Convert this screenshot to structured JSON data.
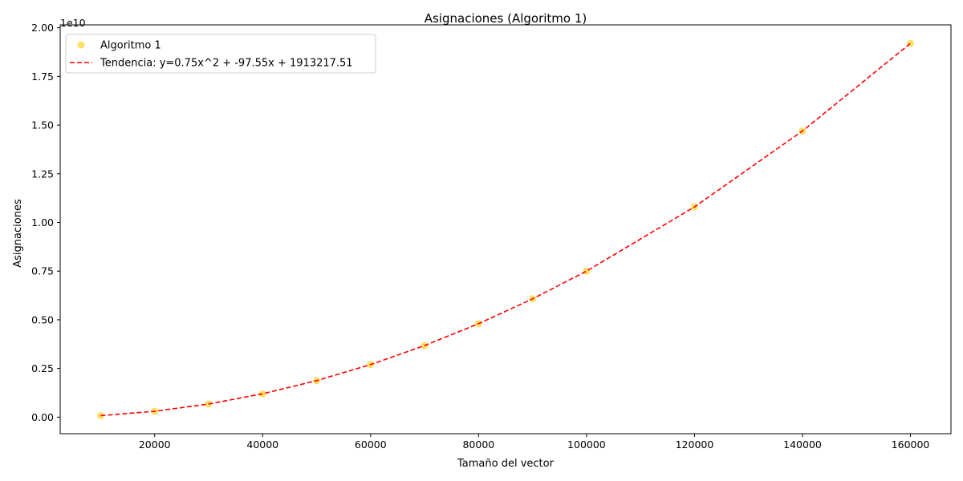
{
  "chart_data": {
    "type": "scatter",
    "title": "Asignaciones (Algoritmo 1)",
    "xlabel": "Tamaño del vector",
    "ylabel": "Asignaciones",
    "y_offset_text": "1e10",
    "xlim": [
      2500,
      167500
    ],
    "ylim": [
      -0.085,
      2.015
    ],
    "xticks": [
      20000,
      40000,
      60000,
      80000,
      100000,
      120000,
      140000,
      160000
    ],
    "xtick_labels": [
      "20000",
      "40000",
      "60000",
      "80000",
      "100000",
      "120000",
      "140000",
      "160000"
    ],
    "yticks": [
      0.0,
      0.25,
      0.5,
      0.75,
      1.0,
      1.25,
      1.5,
      1.75,
      2.0
    ],
    "ytick_labels": [
      "0.00",
      "0.25",
      "0.50",
      "0.75",
      "1.00",
      "1.25",
      "1.50",
      "1.75",
      "2.00"
    ],
    "grid": false,
    "legend_position": "top-left",
    "series": [
      {
        "name": "Algoritmo 1",
        "kind": "scatter",
        "color": "#ffd633",
        "x": [
          10000,
          20000,
          30000,
          40000,
          50000,
          60000,
          70000,
          80000,
          90000,
          100000,
          120000,
          140000,
          160000
        ],
        "y": [
          0.0077,
          0.0302,
          0.0676,
          0.1201,
          0.1876,
          0.2701,
          0.3676,
          0.4801,
          0.6076,
          0.7501,
          1.0801,
          1.4701,
          1.9201
        ]
      },
      {
        "name": "Tendencia: y=0.75x^2 + -97.55x + 1913217.51",
        "kind": "line",
        "style": "dashed",
        "color": "#ff0000",
        "x": [
          10000,
          20000,
          30000,
          40000,
          50000,
          60000,
          70000,
          80000,
          90000,
          100000,
          120000,
          140000,
          160000
        ],
        "y": [
          0.0077,
          0.0302,
          0.0676,
          0.1201,
          0.1876,
          0.2701,
          0.3676,
          0.4801,
          0.6076,
          0.7501,
          1.0801,
          1.4701,
          1.9201
        ]
      }
    ]
  }
}
